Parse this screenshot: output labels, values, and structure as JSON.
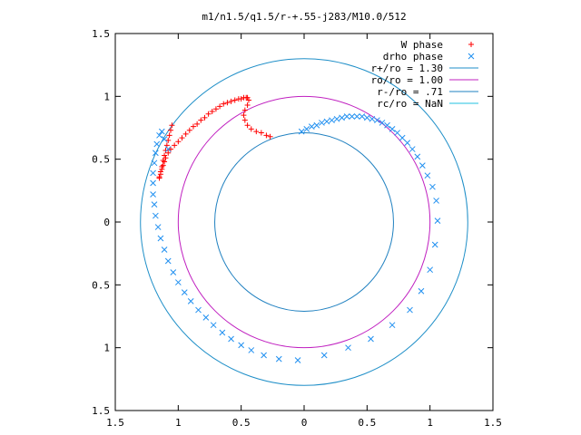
{
  "chart_data": {
    "type": "scatter",
    "title": "m1/n1.5/q1.5/r-+.55-j283/M10.0/512",
    "xlabel": "",
    "ylabel": "",
    "xlim": [
      -1.5,
      1.5
    ],
    "ylim": [
      -1.5,
      1.5
    ],
    "xticks": [
      -1.5,
      -1,
      -0.5,
      0,
      0.5,
      1,
      1.5
    ],
    "xtick_labels": [
      "1.5",
      "1",
      "0.5",
      "0",
      "0.5",
      "1",
      "1.5"
    ],
    "yticks": [
      1.5,
      1,
      0.5,
      0,
      -0.5,
      -1,
      -1.5
    ],
    "ytick_labels": [
      "1.5",
      "1",
      "0.5",
      "0",
      "0.5",
      "1",
      "1.5"
    ],
    "grid": false,
    "legend_position": "top-right",
    "series": [
      {
        "name": "W phase",
        "marker": "plus",
        "color": "#ff0000",
        "x": [
          -1.05,
          -1.06,
          -1.07,
          -1.08,
          -1.09,
          -1.1,
          -1.11,
          -1.12,
          -1.13,
          -1.14,
          -1.15,
          -1.15,
          -1.14,
          -1.13,
          -1.12,
          -1.11,
          -1.1,
          -1.08,
          -1.06,
          -1.03,
          -1.0,
          -0.97,
          -0.94,
          -0.91,
          -0.88,
          -0.85,
          -0.82,
          -0.79,
          -0.76,
          -0.73,
          -0.7,
          -0.67,
          -0.64,
          -0.61,
          -0.58,
          -0.55,
          -0.52,
          -0.5,
          -0.48,
          -0.46,
          -0.45,
          -0.44,
          -0.45,
          -0.47,
          -0.48,
          -0.47,
          -0.45,
          -0.42,
          -0.38,
          -0.34,
          -0.3,
          -0.27
        ],
        "y": [
          0.77,
          0.73,
          0.69,
          0.65,
          0.61,
          0.57,
          0.53,
          0.49,
          0.44,
          0.4,
          0.36,
          0.35,
          0.38,
          0.42,
          0.45,
          0.48,
          0.51,
          0.55,
          0.58,
          0.61,
          0.64,
          0.67,
          0.7,
          0.73,
          0.76,
          0.78,
          0.81,
          0.83,
          0.86,
          0.88,
          0.9,
          0.92,
          0.94,
          0.95,
          0.96,
          0.97,
          0.98,
          0.98,
          0.99,
          0.99,
          0.99,
          0.97,
          0.93,
          0.89,
          0.85,
          0.81,
          0.77,
          0.74,
          0.72,
          0.71,
          0.69,
          0.68
        ]
      },
      {
        "name": "drho phase",
        "marker": "cross",
        "color": "#1f8ff0",
        "x": [
          -0.02,
          0.02,
          0.06,
          0.1,
          0.14,
          0.18,
          0.22,
          0.26,
          0.3,
          0.34,
          0.38,
          0.42,
          0.46,
          0.5,
          0.54,
          0.58,
          0.62,
          0.66,
          0.7,
          0.74,
          0.78,
          0.82,
          0.86,
          0.9,
          0.94,
          0.98,
          1.02,
          1.05,
          1.06,
          1.04,
          1.0,
          0.93,
          0.84,
          0.7,
          0.53,
          0.35,
          0.16,
          -0.05,
          -0.2,
          -0.32,
          -0.42,
          -0.5,
          -0.58,
          -0.65,
          -0.72,
          -0.78,
          -0.84,
          -0.9,
          -0.95,
          -1.0,
          -1.04,
          -1.08,
          -1.11,
          -1.14,
          -1.16,
          -1.18,
          -1.19,
          -1.2,
          -1.2,
          -1.2,
          -1.19,
          -1.18,
          -1.17,
          -1.15,
          -1.13,
          -1.11,
          -1.08
        ],
        "y": [
          0.72,
          0.74,
          0.76,
          0.77,
          0.79,
          0.8,
          0.81,
          0.82,
          0.83,
          0.84,
          0.84,
          0.84,
          0.84,
          0.83,
          0.82,
          0.81,
          0.79,
          0.77,
          0.74,
          0.71,
          0.67,
          0.63,
          0.58,
          0.52,
          0.45,
          0.37,
          0.28,
          0.17,
          0.01,
          -0.18,
          -0.38,
          -0.55,
          -0.7,
          -0.82,
          -0.93,
          -1.0,
          -1.06,
          -1.1,
          -1.09,
          -1.06,
          -1.02,
          -0.98,
          -0.93,
          -0.88,
          -0.82,
          -0.76,
          -0.7,
          -0.63,
          -0.56,
          -0.48,
          -0.4,
          -0.31,
          -0.22,
          -0.13,
          -0.04,
          0.05,
          0.14,
          0.22,
          0.31,
          0.39,
          0.47,
          0.55,
          0.62,
          0.69,
          0.72,
          0.66,
          0.58
        ]
      },
      {
        "name": "r+/ro = 1.30",
        "type": "circle",
        "radius": 1.3,
        "color": "#1f8fc8"
      },
      {
        "name": "ro/ro = 1.00",
        "type": "circle",
        "radius": 1.0,
        "color": "#c020c0"
      },
      {
        "name": "r-/ro = .71",
        "type": "circle",
        "radius": 0.71,
        "color": "#1f80c0"
      },
      {
        "name": "rc/ro = NaN",
        "type": "circle",
        "radius": null,
        "color": "#20c0e0"
      }
    ]
  }
}
